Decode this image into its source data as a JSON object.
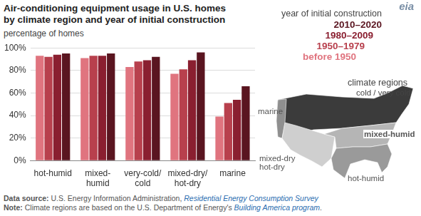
{
  "chart_data": {
    "type": "bar",
    "title": [
      "Air-conditioning equipment usage in U.S. homes",
      "by climate region and year of initial construction"
    ],
    "y_label": "percentage of homes",
    "categories": [
      "hot-humid",
      [
        "mixed-",
        "humid"
      ],
      [
        "very-cold/",
        "cold"
      ],
      [
        "mixed-dry/",
        "hot-dry"
      ],
      "marine"
    ],
    "series": [
      {
        "name": "before 1950",
        "color": "#e0747f",
        "values": [
          93,
          91,
          83,
          77,
          39
        ]
      },
      {
        "name": "1950–1979",
        "color": "#b8404d",
        "values": [
          92,
          93,
          88,
          81,
          51
        ]
      },
      {
        "name": "1980–2009",
        "color": "#8a1f30",
        "values": [
          94,
          93,
          89,
          89,
          54
        ]
      },
      {
        "name": "2010–2020",
        "color": "#5a1520",
        "values": [
          95,
          95,
          92,
          96,
          66
        ]
      }
    ],
    "legend_title": "year of initial construction",
    "legend": "right",
    "ylim": [
      0,
      100
    ],
    "yticks": [
      {
        "value": 0,
        "label": "0%"
      },
      {
        "value": 20,
        "label": "20%"
      },
      {
        "value": 40,
        "label": "40%"
      },
      {
        "value": 60,
        "label": "60%"
      },
      {
        "value": 80,
        "label": "80%"
      },
      {
        "value": 100,
        "label": "100%"
      }
    ],
    "grid": true
  },
  "map": {
    "title": "climate regions",
    "labels": [
      "marine",
      "cold / very cold",
      "mixed-humid",
      [
        "mixed-dry",
        "hot-dry"
      ],
      "hot-humid"
    ]
  },
  "logo": "eia",
  "notes": [
    {
      "label": "Data source:",
      "text": "U.S. Energy Information Administration, ",
      "link": "Residential Energy Consumption Survey",
      "after": ""
    },
    {
      "label": "Note:",
      "text": "Climate regions are based on the U.S. Department of Energy's ",
      "link": "Building America program",
      "after": "."
    }
  ]
}
